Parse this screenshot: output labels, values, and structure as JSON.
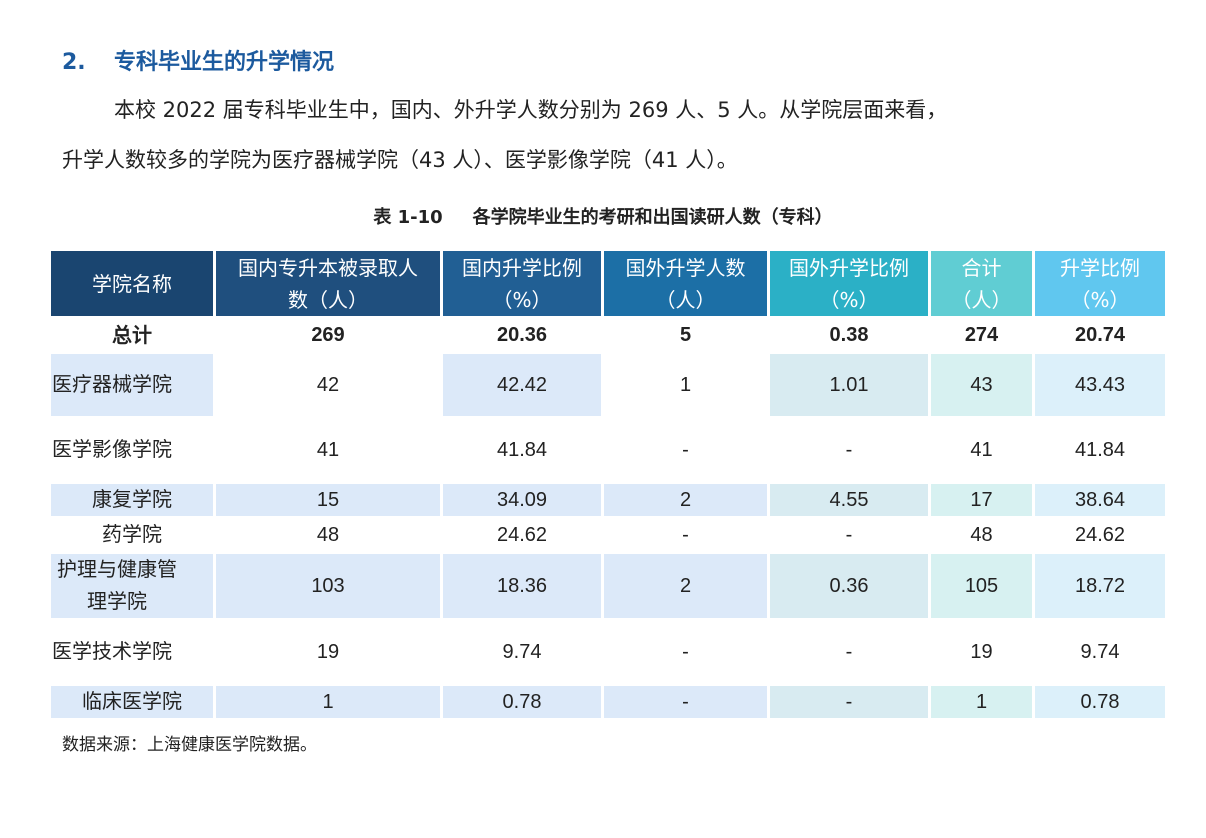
{
  "heading": {
    "number": "2.",
    "title": "专科毕业生的升学情况"
  },
  "paragraph": {
    "line1": "本校 2022 届专科毕业生中，国内、外升学人数分别为 269 人、5 人。从学院层面来看，",
    "line2": "升学人数较多的学院为医疗器械学院（43 人）、医学影像学院（41 人）。"
  },
  "table": {
    "caption_number": "表 1-10",
    "caption_title": "各学院毕业生的考研和出国读研人数（专科）",
    "headers": [
      "学院名称",
      "国内专升本被录取人数（人）",
      "国内升学比例（%）",
      "国外升学人数（人）",
      "国外升学比例（%）",
      "合计（人）",
      "升学比例（%）"
    ],
    "total": [
      "总计",
      "269",
      "20.36",
      "5",
      "0.38",
      "274",
      "20.74"
    ],
    "rows": [
      [
        "医疗器械学院",
        "42",
        "42.42",
        "1",
        "1.01",
        "43",
        "43.43"
      ],
      [
        "医学影像学院",
        "41",
        "41.84",
        "-",
        "-",
        "41",
        "41.84"
      ],
      [
        "康复学院",
        "15",
        "34.09",
        "2",
        "4.55",
        "17",
        "38.64"
      ],
      [
        "药学院",
        "48",
        "24.62",
        "-",
        "-",
        "48",
        "24.62"
      ],
      [
        "护理与健康管理学院",
        "103",
        "18.36",
        "2",
        "0.36",
        "105",
        "18.72"
      ],
      [
        "医学技术学院",
        "19",
        "9.74",
        "-",
        "-",
        "19",
        "9.74"
      ],
      [
        "临床医学院",
        "1",
        "0.78",
        "-",
        "-",
        "1",
        "0.78"
      ]
    ],
    "source": "数据来源：上海健康医学院数据。"
  }
}
